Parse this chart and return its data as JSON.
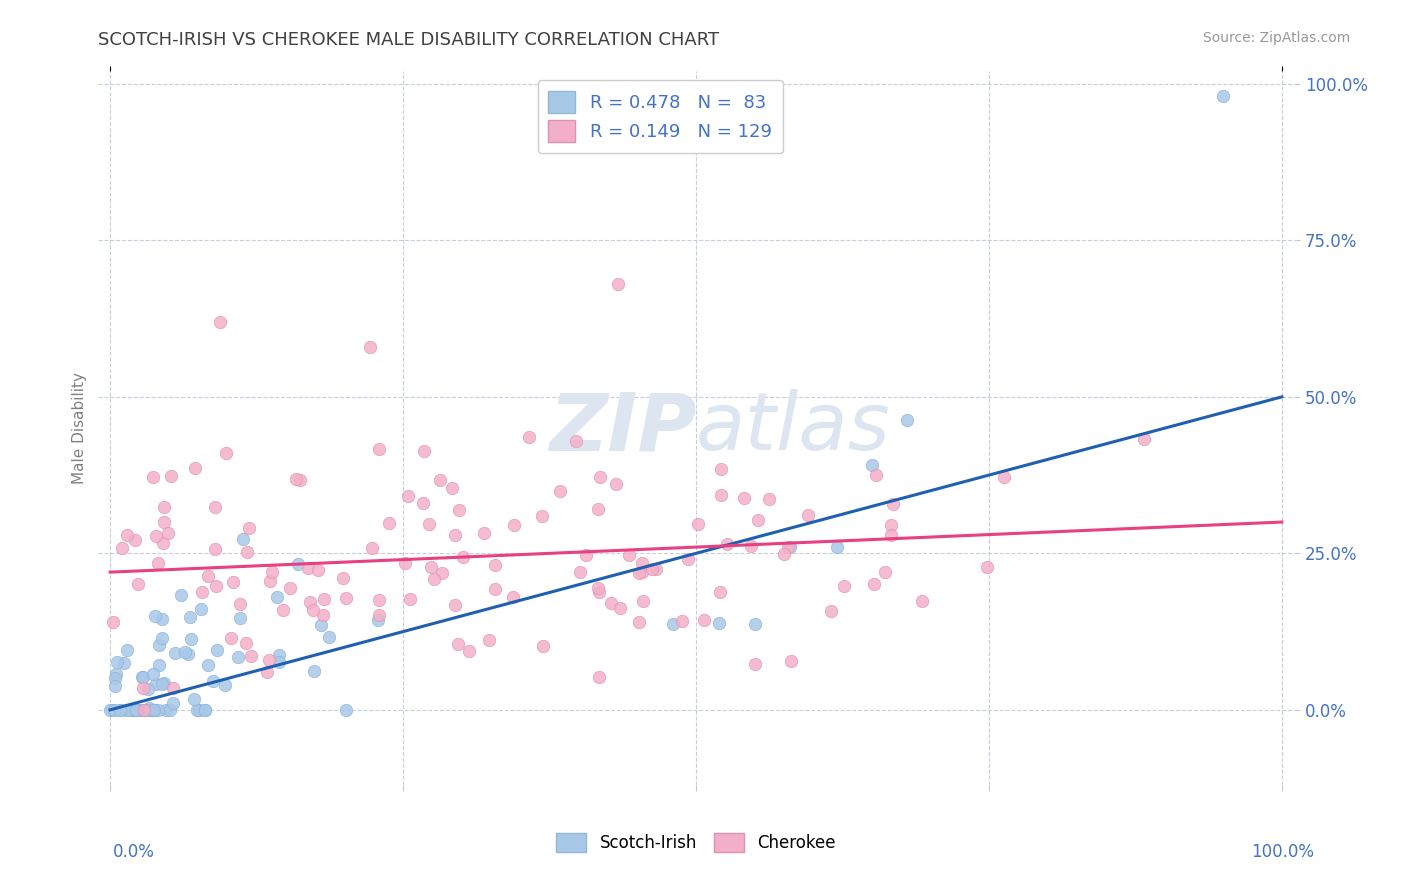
{
  "title": "SCOTCH-IRISH VS CHEROKEE MALE DISABILITY CORRELATION CHART",
  "source_text": "Source: ZipAtlas.com",
  "ylabel": "Male Disability",
  "legend_label1": "Scotch-Irish",
  "legend_label2": "Cherokee",
  "r1": 0.478,
  "n1": 83,
  "r2": 0.149,
  "n2": 129,
  "color1": "#a8c8e8",
  "color2": "#f4afc8",
  "line_color1": "#2060b0",
  "line_color2": "#e8408080",
  "background_color": "#ffffff",
  "grid_color": "#c0c8d8",
  "title_color": "#404040",
  "axis_label_color": "#808080",
  "tick_label_color": "#4472c4",
  "source_color": "#999999",
  "watermark": "ZIPatlas",
  "xlim": [
    0,
    1.0
  ],
  "ylim": [
    -0.05,
    1.0
  ],
  "blue_line_start_y": 0.0,
  "blue_line_end_y": 0.5,
  "pink_line_start_y": 0.22,
  "pink_line_end_y": 0.3
}
